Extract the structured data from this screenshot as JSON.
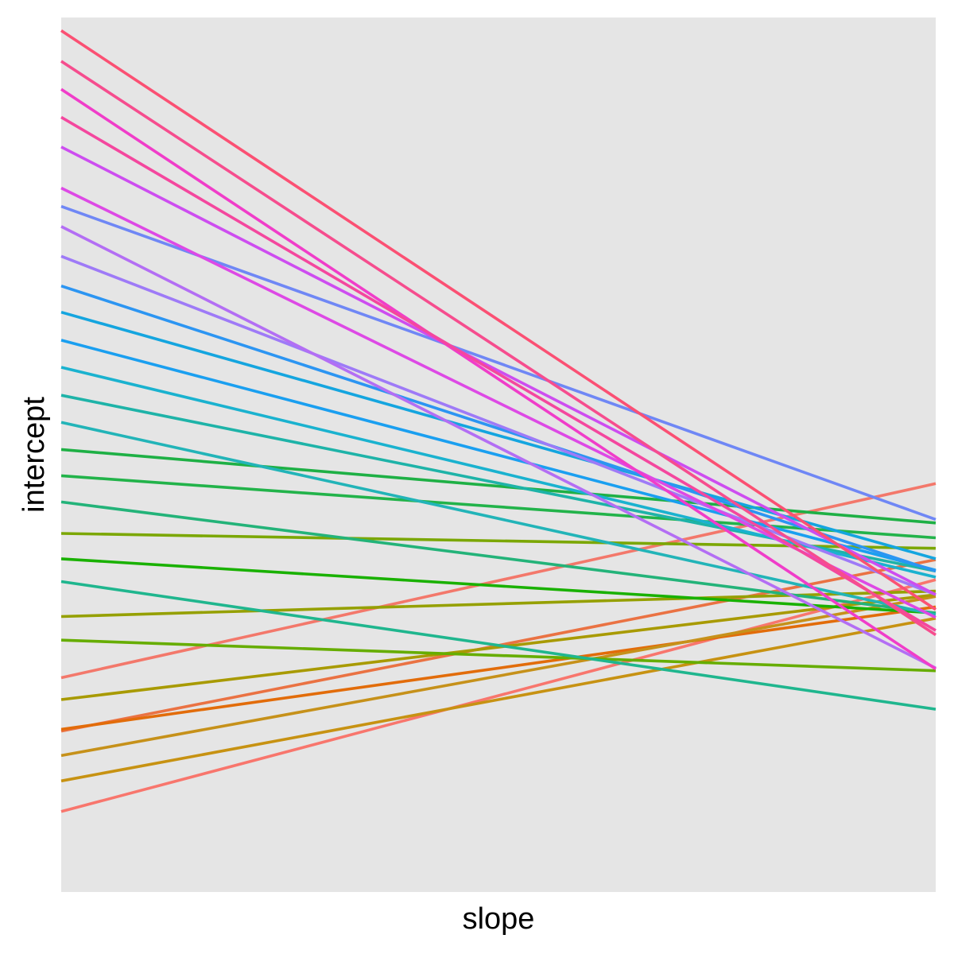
{
  "chart_data": {
    "type": "line",
    "xlabel": "slope",
    "ylabel": "intercept",
    "grid": false,
    "legend": "none",
    "panel_background": "#e5e5e5",
    "xlim": [
      0,
      1
    ],
    "ylim": [
      0,
      1
    ],
    "series": [
      {
        "color": "#f8766d",
        "x": [
          0,
          1
        ],
        "y": [
          0.092,
          0.357
        ]
      },
      {
        "color": "#f3786b",
        "x": [
          0,
          1
        ],
        "y": [
          0.245,
          0.467
        ]
      },
      {
        "color": "#ea7243",
        "x": [
          0,
          1
        ],
        "y": [
          0.184,
          0.38
        ]
      },
      {
        "color": "#e26c0a",
        "x": [
          0,
          1
        ],
        "y": [
          0.186,
          0.326
        ]
      },
      {
        "color": "#c79212",
        "x": [
          0,
          1
        ],
        "y": [
          0.127,
          0.313
        ]
      },
      {
        "color": "#c6911a",
        "x": [
          0,
          1
        ],
        "y": [
          0.156,
          0.338
        ]
      },
      {
        "color": "#a89a00",
        "x": [
          0,
          1
        ],
        "y": [
          0.22,
          0.34
        ]
      },
      {
        "color": "#95a000",
        "x": [
          0,
          1
        ],
        "y": [
          0.315,
          0.344
        ]
      },
      {
        "color": "#7ba704",
        "x": [
          0,
          1
        ],
        "y": [
          0.41,
          0.393
        ]
      },
      {
        "color": "#66ad00",
        "x": [
          0,
          1
        ],
        "y": [
          0.288,
          0.253
        ]
      },
      {
        "color": "#19b100",
        "x": [
          0,
          1
        ],
        "y": [
          0.381,
          0.319
        ]
      },
      {
        "color": "#22b34a",
        "x": [
          0,
          1
        ],
        "y": [
          0.476,
          0.405
        ]
      },
      {
        "color": "#1eb045",
        "x": [
          0,
          1
        ],
        "y": [
          0.506,
          0.422
        ]
      },
      {
        "color": "#23b379",
        "x": [
          0,
          1
        ],
        "y": [
          0.446,
          0.319
        ]
      },
      {
        "color": "#1fb68e",
        "x": [
          0,
          1
        ],
        "y": [
          0.355,
          0.209
        ]
      },
      {
        "color": "#1eb3a8",
        "x": [
          0,
          1
        ],
        "y": [
          0.568,
          0.367
        ]
      },
      {
        "color": "#22b4b8",
        "x": [
          0,
          1
        ],
        "y": [
          0.537,
          0.317
        ]
      },
      {
        "color": "#1ab2cf",
        "x": [
          0,
          1
        ],
        "y": [
          0.6,
          0.36
        ]
      },
      {
        "color": "#14a5df",
        "x": [
          0,
          1
        ],
        "y": [
          0.663,
          0.381
        ]
      },
      {
        "color": "#1a9ff0",
        "x": [
          0,
          1
        ],
        "y": [
          0.631,
          0.368
        ]
      },
      {
        "color": "#2c95f2",
        "x": [
          0,
          1
        ],
        "y": [
          0.693,
          0.367
        ]
      },
      {
        "color": "#6f87f5",
        "x": [
          0,
          1
        ],
        "y": [
          0.784,
          0.426
        ]
      },
      {
        "color": "#9e7af7",
        "x": [
          0,
          1
        ],
        "y": [
          0.727,
          0.34
        ]
      },
      {
        "color": "#b36ef4",
        "x": [
          0,
          1
        ],
        "y": [
          0.761,
          0.256
        ]
      },
      {
        "color": "#cd4df0",
        "x": [
          0,
          1
        ],
        "y": [
          0.852,
          0.34
        ]
      },
      {
        "color": "#dd49e5",
        "x": [
          0,
          1
        ],
        "y": [
          0.805,
          0.314
        ]
      },
      {
        "color": "#f03dc9",
        "x": [
          0,
          1
        ],
        "y": [
          0.918,
          0.255
        ]
      },
      {
        "color": "#f4479e",
        "x": [
          0,
          1
        ],
        "y": [
          0.886,
          0.299
        ]
      },
      {
        "color": "#f64d8e",
        "x": [
          0,
          1
        ],
        "y": [
          0.95,
          0.294
        ]
      },
      {
        "color": "#fb5073",
        "x": [
          0,
          1
        ],
        "y": [
          0.985,
          0.323
        ]
      }
    ]
  }
}
